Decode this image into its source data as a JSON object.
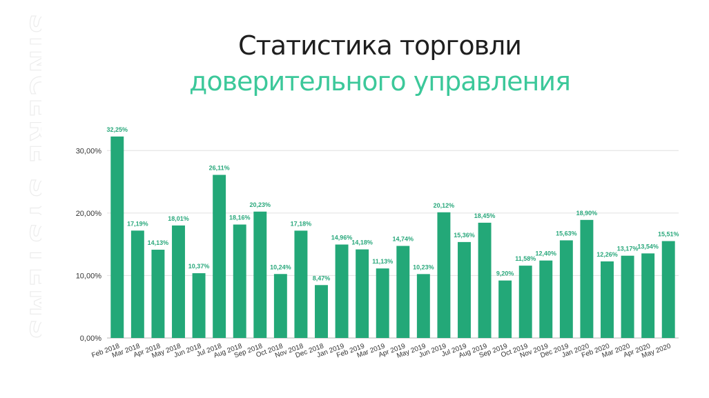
{
  "watermark": "SINCERE SYSTEMS",
  "title": {
    "line1": "Статистика торговли",
    "line2": "доверительного управления"
  },
  "colors": {
    "bar": "#23a878",
    "label": "#2aa87c",
    "title_accent": "#3cc89a",
    "grid": "#e0e0e0"
  },
  "chart_data": {
    "type": "bar",
    "title": "Статистика торговли доверительного управления",
    "xlabel": "",
    "ylabel": "",
    "ylim": [
      0,
      35
    ],
    "yticks": [
      0,
      10,
      20,
      30
    ],
    "ytick_labels": [
      "0,00%",
      "10,00%",
      "20,00%",
      "30,00%"
    ],
    "grid": true,
    "categories": [
      "Feb 2018",
      "Mar 2018",
      "Apr 2018",
      "May 2018",
      "Jun 2018",
      "Jul 2018",
      "Aug 2018",
      "Sep 2018",
      "Oct 2018",
      "Nov 2018",
      "Dec 2018",
      "Jan 2019",
      "Feb 2019",
      "Mar 2019",
      "Apr 2019",
      "May 2019",
      "Jun 2019",
      "Jul 2019",
      "Aug 2019",
      "Sep 2019",
      "Oct 2019",
      "Nov 2019",
      "Dec 2019",
      "Jan 2020",
      "Feb 2020",
      "Mar 2020",
      "Apr 2020",
      "May 2020"
    ],
    "values": [
      32.25,
      17.19,
      14.13,
      18.01,
      10.37,
      26.11,
      18.16,
      20.23,
      10.24,
      17.18,
      8.47,
      14.96,
      14.18,
      11.13,
      14.74,
      10.23,
      20.12,
      15.36,
      18.45,
      9.2,
      11.58,
      12.4,
      15.63,
      18.9,
      12.26,
      13.17,
      13.54,
      15.51
    ],
    "data_labels": [
      "32,25%",
      "17,19%",
      "14,13%",
      "18,01%",
      "10,37%",
      "26,11%",
      "18,16%",
      "20,23%",
      "10,24%",
      "17,18%",
      "8,47%",
      "14,96%",
      "14,18%",
      "11,13%",
      "14,74%",
      "10,23%",
      "20,12%",
      "15,36%",
      "18,45%",
      "9,20%",
      "11,58%",
      "12,40%",
      "15,63%",
      "18,90%",
      "12,26%",
      "13,17%",
      "13,54%",
      "15,51%"
    ]
  }
}
